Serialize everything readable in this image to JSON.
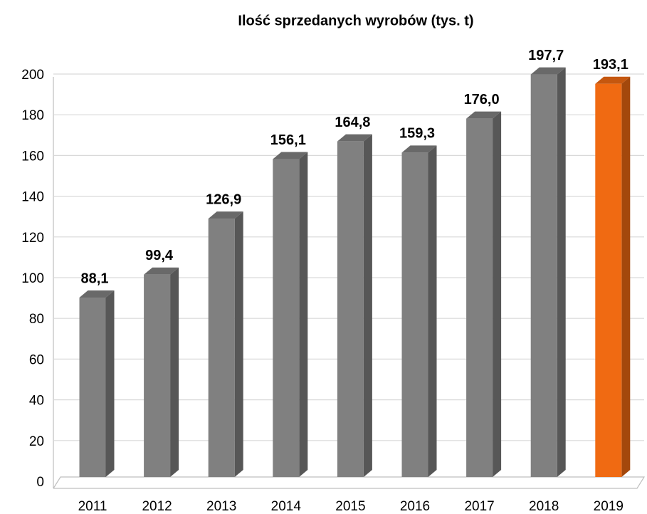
{
  "chart_data": {
    "type": "bar3d",
    "title": "Ilość sprzedanych wyrobów (tys. t)",
    "categories": [
      "2011",
      "2012",
      "2013",
      "2014",
      "2015",
      "2016",
      "2017",
      "2018",
      "2019"
    ],
    "values": [
      88.1,
      99.4,
      126.9,
      156.1,
      164.8,
      159.3,
      176.0,
      197.7,
      193.1
    ],
    "value_labels": [
      "88,1",
      "99,4",
      "126,9",
      "156,1",
      "164,8",
      "159,3",
      "176,0",
      "197,7",
      "193,1"
    ],
    "colors": [
      "#808080",
      "#808080",
      "#808080",
      "#808080",
      "#808080",
      "#808080",
      "#808080",
      "#808080",
      "#f06a12"
    ],
    "ylim": [
      0,
      200
    ],
    "yticks": [
      0,
      20,
      40,
      60,
      80,
      100,
      120,
      140,
      160,
      180,
      200
    ],
    "grid": true
  }
}
